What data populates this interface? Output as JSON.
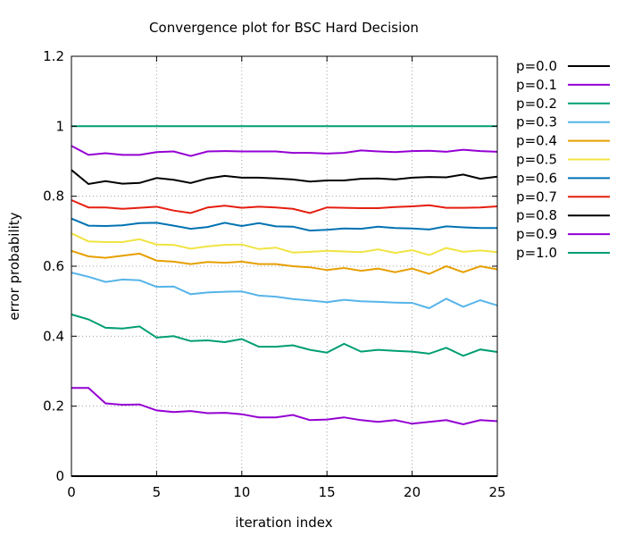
{
  "chart_data": {
    "type": "line",
    "title": "Convergence plot for BSC Hard Decision",
    "xlabel": "iteration index",
    "ylabel": "error probability",
    "xlim": [
      0,
      25
    ],
    "ylim": [
      0,
      1.2
    ],
    "xticks": [
      0,
      5,
      10,
      15,
      20,
      25
    ],
    "xtick_labels": [
      "0",
      "5",
      "10",
      "15",
      "20",
      "25"
    ],
    "yticks": [
      0,
      0.2,
      0.4,
      0.6,
      0.8,
      1.0,
      1.2
    ],
    "ytick_labels": [
      "0",
      "0.2",
      "0.4",
      "0.6",
      "0.8",
      "1",
      "1.2"
    ],
    "grid": true,
    "legend_position": "right-outside",
    "x": [
      0,
      1,
      2,
      3,
      4,
      5,
      6,
      7,
      8,
      9,
      10,
      11,
      12,
      13,
      14,
      15,
      16,
      17,
      18,
      19,
      20,
      21,
      22,
      23,
      24,
      25
    ],
    "series": [
      {
        "name": "p=0.0",
        "color": "#000000",
        "values": [
          0.875,
          0.835,
          0.843,
          0.836,
          0.838,
          0.852,
          0.847,
          0.838,
          0.851,
          0.858,
          0.853,
          0.853,
          0.851,
          0.848,
          0.842,
          0.845,
          0.845,
          0.85,
          0.851,
          0.848,
          0.853,
          0.855,
          0.854,
          0.862,
          0.85,
          0.856
        ]
      },
      {
        "name": "p=0.1",
        "color": "#9400d3",
        "values": [
          0.944,
          0.918,
          0.923,
          0.918,
          0.918,
          0.926,
          0.928,
          0.915,
          0.928,
          0.929,
          0.928,
          0.928,
          0.928,
          0.924,
          0.924,
          0.922,
          0.924,
          0.931,
          0.928,
          0.926,
          0.929,
          0.93,
          0.927,
          0.933,
          0.929,
          0.927
        ]
      },
      {
        "name": "p=0.2",
        "color": "#009e73",
        "values": [
          1.0,
          1.0,
          1.0,
          1.0,
          1.0,
          1.0,
          1.0,
          1.0,
          1.0,
          1.0,
          1.0,
          1.0,
          1.0,
          1.0,
          1.0,
          1.0,
          1.0,
          1.0,
          1.0,
          1.0,
          1.0,
          1.0,
          1.0,
          1.0,
          1.0,
          1.0
        ]
      },
      {
        "name": "p=0.3",
        "color": "#56b4e9",
        "values": [
          0.582,
          0.57,
          0.555,
          0.562,
          0.56,
          0.541,
          0.542,
          0.52,
          0.525,
          0.527,
          0.528,
          0.516,
          0.513,
          0.506,
          0.502,
          0.497,
          0.504,
          0.5,
          0.498,
          0.496,
          0.495,
          0.48,
          0.507,
          0.484,
          0.503,
          0.488
        ]
      },
      {
        "name": "p=0.4",
        "color": "#e69f00",
        "values": [
          0.644,
          0.628,
          0.624,
          0.63,
          0.636,
          0.616,
          0.613,
          0.606,
          0.612,
          0.61,
          0.613,
          0.606,
          0.606,
          0.6,
          0.597,
          0.589,
          0.595,
          0.587,
          0.593,
          0.583,
          0.593,
          0.578,
          0.6,
          0.583,
          0.6,
          0.591
        ]
      },
      {
        "name": "p=0.5",
        "color": "#f0e442",
        "values": [
          0.694,
          0.671,
          0.669,
          0.669,
          0.677,
          0.662,
          0.661,
          0.65,
          0.657,
          0.661,
          0.662,
          0.649,
          0.653,
          0.639,
          0.641,
          0.644,
          0.642,
          0.64,
          0.648,
          0.638,
          0.646,
          0.632,
          0.652,
          0.641,
          0.645,
          0.64
        ]
      },
      {
        "name": "p=0.6",
        "color": "#0072b2",
        "values": [
          0.736,
          0.716,
          0.715,
          0.717,
          0.723,
          0.724,
          0.716,
          0.707,
          0.712,
          0.724,
          0.715,
          0.723,
          0.714,
          0.713,
          0.702,
          0.704,
          0.708,
          0.707,
          0.713,
          0.709,
          0.708,
          0.705,
          0.714,
          0.711,
          0.709,
          0.709
        ]
      },
      {
        "name": "p=0.7",
        "color": "#e51e10",
        "values": [
          0.789,
          0.768,
          0.768,
          0.764,
          0.767,
          0.77,
          0.759,
          0.752,
          0.768,
          0.773,
          0.767,
          0.77,
          0.768,
          0.764,
          0.752,
          0.768,
          0.767,
          0.766,
          0.766,
          0.769,
          0.771,
          0.774,
          0.767,
          0.767,
          0.768,
          0.771
        ]
      },
      {
        "name": "p=0.8",
        "color": "#000000",
        "values": [
          0.0,
          0.0,
          0.0,
          0.0,
          0.0,
          0.0,
          0.0,
          0.0,
          0.0,
          0.0,
          0.0,
          0.0,
          0.0,
          0.0,
          0.0,
          0.0,
          0.0,
          0.0,
          0.0,
          0.0,
          0.0,
          0.0,
          0.0,
          0.0,
          0.0,
          0.0
        ]
      },
      {
        "name": "p=0.9",
        "color": "#9400d3",
        "values": [
          0.252,
          0.252,
          0.208,
          0.204,
          0.205,
          0.188,
          0.183,
          0.186,
          0.18,
          0.181,
          0.177,
          0.168,
          0.168,
          0.175,
          0.16,
          0.162,
          0.168,
          0.16,
          0.155,
          0.16,
          0.15,
          0.155,
          0.16,
          0.148,
          0.16,
          0.157
        ]
      },
      {
        "name": "p=1.0",
        "color": "#009e73",
        "values": [
          0.462,
          0.448,
          0.424,
          0.422,
          0.428,
          0.396,
          0.4,
          0.386,
          0.388,
          0.383,
          0.392,
          0.37,
          0.37,
          0.374,
          0.361,
          0.353,
          0.378,
          0.356,
          0.361,
          0.358,
          0.356,
          0.35,
          0.367,
          0.344,
          0.362,
          0.355
        ]
      }
    ]
  }
}
